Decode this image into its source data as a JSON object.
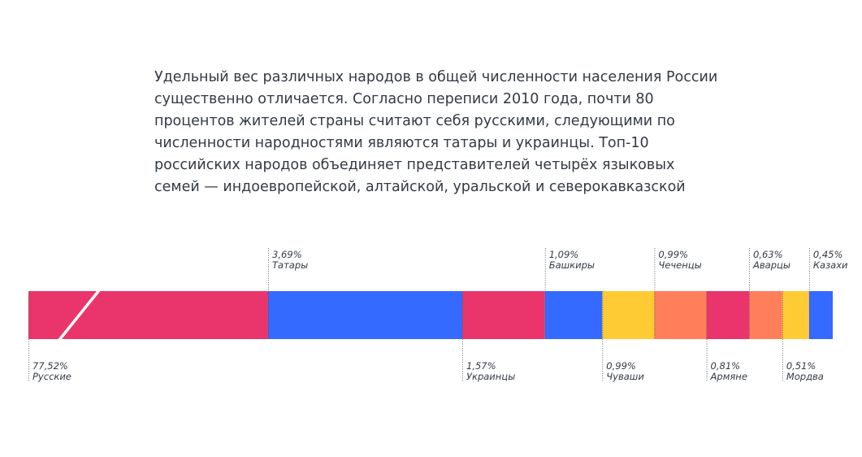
{
  "intro": {
    "text": "Удельный вес различных народов в общей численности населения России существенно отличается. Согласно переписи 2010 года, почти 80 процентов жителей страны считают себя русскими, следующими по численности народностями являются татары и украинцы. Топ-10 российских народов объединяет представителей четырёх языковых семей — индоевропейской, алтайской, уральской и северокавказской"
  },
  "chart_data": {
    "type": "bar",
    "orientation": "stacked-horizontal",
    "axis_break_on_first_segment": true,
    "segments": [
      {
        "label": "Русские",
        "value_text": "77,52%",
        "value": 77.52,
        "color": "#ea356c",
        "label_side": "bottom"
      },
      {
        "label": "Татары",
        "value_text": "3,69%",
        "value": 3.69,
        "color": "#346aff",
        "label_side": "top"
      },
      {
        "label": "Украинцы",
        "value_text": "1,57%",
        "value": 1.57,
        "color": "#ea356c",
        "label_side": "bottom"
      },
      {
        "label": "Башкиры",
        "value_text": "1,09%",
        "value": 1.09,
        "color": "#346aff",
        "label_side": "top"
      },
      {
        "label": "Чуваши",
        "value_text": "0,99%",
        "value": 0.99,
        "color": "#ffcb35",
        "label_side": "bottom"
      },
      {
        "label": "Чеченцы",
        "value_text": "0,99%",
        "value": 0.99,
        "color": "#ff7f5a",
        "label_side": "top"
      },
      {
        "label": "Армяне",
        "value_text": "0,81%",
        "value": 0.81,
        "color": "#ea356c",
        "label_side": "bottom"
      },
      {
        "label": "Аварцы",
        "value_text": "0,63%",
        "value": 0.63,
        "color": "#ff7f5a",
        "label_side": "top"
      },
      {
        "label": "Мордва",
        "value_text": "0,51%",
        "value": 0.51,
        "color": "#ffcb35",
        "label_side": "bottom"
      },
      {
        "label": "Казахи",
        "value_text": "0,45%",
        "value": 0.45,
        "color": "#346aff",
        "label_side": "top"
      }
    ]
  }
}
